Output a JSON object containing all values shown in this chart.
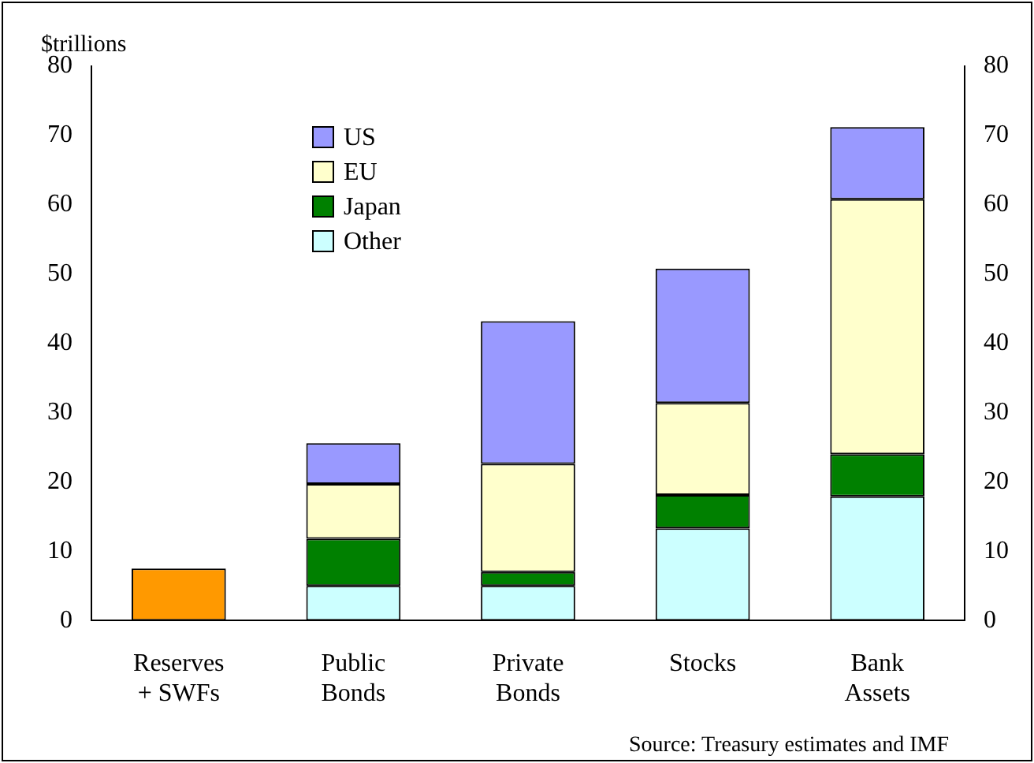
{
  "chart_data": {
    "type": "bar",
    "stacked": true,
    "ylabel": "$trillions",
    "categories": [
      "Reserves\n+ SWFs",
      "Public\nBonds",
      "Private\nBonds",
      "Stocks",
      "Bank\nAssets"
    ],
    "series": [
      {
        "color": "#ff9900",
        "values": [
          7.5,
          null,
          null,
          null,
          null
        ]
      },
      {
        "name": "Other",
        "color": "#ccffff",
        "values": [
          null,
          5,
          5,
          13.3,
          17.9
        ]
      },
      {
        "name": "Japan",
        "color": "#008000",
        "values": [
          null,
          6.8,
          2,
          4.8,
          6.1
        ]
      },
      {
        "name": "EU",
        "color": "#ffffcc",
        "values": [
          null,
          7.9,
          15.6,
          13.3,
          36.8
        ]
      },
      {
        "name": "US",
        "color": "#9999ff",
        "values": [
          null,
          5.9,
          20.6,
          19.4,
          10.4
        ]
      }
    ],
    "ylim": [
      0,
      80
    ],
    "yticks": [
      0,
      10,
      20,
      30,
      40,
      50,
      60,
      70,
      80
    ],
    "y2lim": [
      0,
      80
    ],
    "y2ticks": [
      0,
      10,
      20,
      30,
      40,
      50,
      60,
      70,
      80
    ],
    "grid": false,
    "legend": "top left",
    "annotations": [
      "Source: Treasury estimates and IMF"
    ]
  }
}
